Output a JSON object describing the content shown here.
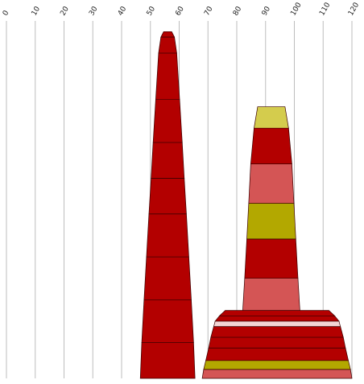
{
  "chart_data": {
    "type": "funnel-columns",
    "title": "",
    "xlabel": "",
    "ylabel": "",
    "xlim": [
      0,
      120
    ],
    "x_ticks": [
      "0",
      "10",
      "20",
      "30",
      "40",
      "50",
      "60",
      "70",
      "80",
      "90",
      "100",
      "110",
      "120"
    ],
    "grid": true,
    "legend": "none",
    "series": [
      {
        "center": 56,
        "segments": [
          {
            "bottom": 0,
            "top": 0.1,
            "bottom_width": 19.0,
            "top_width": 18.0,
            "color": "#b30000"
          },
          {
            "bottom": 0.1,
            "top": 0.22,
            "bottom_width": 18.0,
            "top_width": 16.4,
            "color": "#b30000"
          },
          {
            "bottom": 0.22,
            "top": 0.34,
            "bottom_width": 16.4,
            "top_width": 14.7,
            "color": "#b30000"
          },
          {
            "bottom": 0.34,
            "top": 0.46,
            "bottom_width": 14.7,
            "top_width": 13.0,
            "color": "#b30000"
          },
          {
            "bottom": 0.46,
            "top": 0.56,
            "bottom_width": 13.0,
            "top_width": 11.5,
            "color": "#b30000"
          },
          {
            "bottom": 0.56,
            "top": 0.66,
            "bottom_width": 11.5,
            "top_width": 10.1,
            "color": "#b30000"
          },
          {
            "bottom": 0.66,
            "top": 0.78,
            "bottom_width": 10.1,
            "top_width": 8.3,
            "color": "#b30000"
          },
          {
            "bottom": 0.78,
            "top": 0.91,
            "bottom_width": 8.3,
            "top_width": 6.3,
            "color": "#b30000"
          },
          {
            "bottom": 0.91,
            "top": 0.955,
            "bottom_width": 6.3,
            "top_width": 4.7,
            "color": "#b30000"
          },
          {
            "bottom": 0.955,
            "top": 0.97,
            "bottom_width": 4.7,
            "top_width": 2.8,
            "color": "#b30000"
          }
        ]
      },
      {
        "center": 92,
        "segments": [
          {
            "bottom": 0.18,
            "top": 0.28,
            "bottom_width": 20.0,
            "top_width": 18.5,
            "color": "#d45555"
          },
          {
            "bottom": 0.28,
            "top": 0.39,
            "bottom_width": 18.5,
            "top_width": 17.0,
            "color": "#b30000"
          },
          {
            "bottom": 0.39,
            "top": 0.49,
            "bottom_width": 17.0,
            "top_width": 15.7,
            "color": "#b3a800"
          },
          {
            "bottom": 0.49,
            "top": 0.6,
            "bottom_width": 15.7,
            "top_width": 14.3,
            "color": "#d45555"
          },
          {
            "bottom": 0.6,
            "top": 0.7,
            "bottom_width": 14.3,
            "top_width": 12.0,
            "color": "#b30000"
          },
          {
            "bottom": 0.7,
            "top": 0.76,
            "bottom_width": 12.0,
            "top_width": 9.5,
            "color": "#d4cc4d"
          }
        ]
      },
      {
        "center": 94,
        "segments": [
          {
            "bottom": 0,
            "top": 0.025,
            "bottom_width": 52.0,
            "top_width": 51.0,
            "color": "#d45555"
          },
          {
            "bottom": 0.025,
            "top": 0.05,
            "bottom_width": 51.0,
            "top_width": 49.5,
            "color": "#b3a800"
          },
          {
            "bottom": 0.05,
            "top": 0.085,
            "bottom_width": 49.5,
            "top_width": 47.5,
            "color": "#b30000"
          },
          {
            "bottom": 0.085,
            "top": 0.115,
            "bottom_width": 47.5,
            "top_width": 46.0,
            "color": "#b30000"
          },
          {
            "bottom": 0.115,
            "top": 0.145,
            "bottom_width": 46.0,
            "top_width": 44.0,
            "color": "#b30000"
          },
          {
            "bottom": 0.145,
            "top": 0.16,
            "bottom_width": 44.0,
            "top_width": 43.0,
            "color": "#f3d4d4"
          },
          {
            "bottom": 0.16,
            "top": 0.175,
            "bottom_width": 43.0,
            "top_width": 40.0,
            "color": "#b30000"
          },
          {
            "bottom": 0.175,
            "top": 0.19,
            "bottom_width": 40.0,
            "top_width": 36.0,
            "color": "#b30000"
          },
          {
            "bottom": 0.19,
            "top": 0.18,
            "bottom_width": 36.0,
            "top_width": 36.0,
            "color": "#b30000"
          }
        ]
      }
    ]
  }
}
